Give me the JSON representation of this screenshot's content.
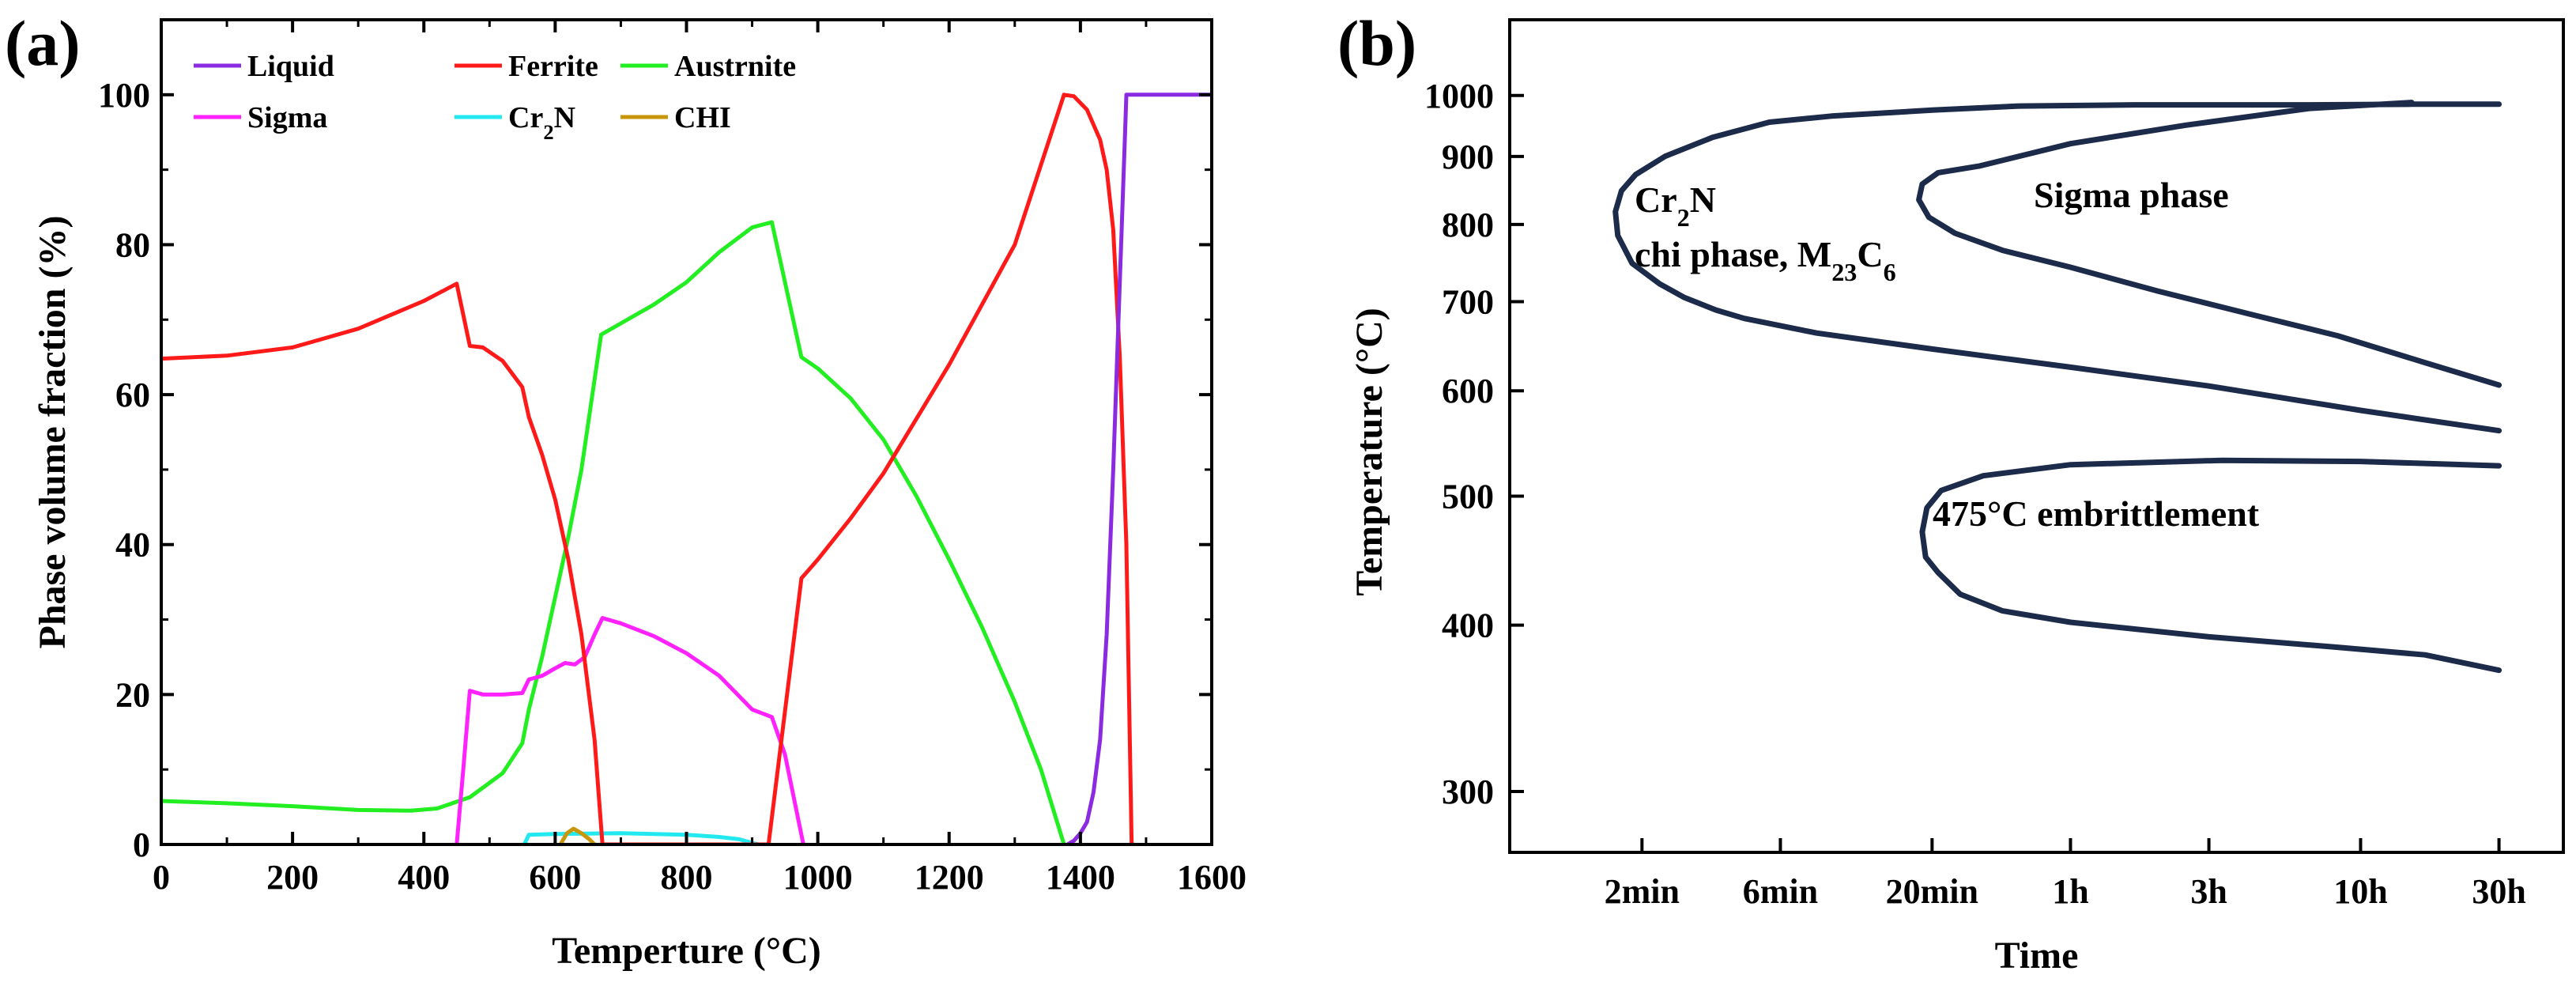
{
  "chart_data": [
    {
      "panel_label": "(a)",
      "type": "line",
      "xlabel": "Temperture (°C)",
      "ylabel": "Phase volume fraction (%)",
      "xlim": [
        0,
        1600
      ],
      "ylim": [
        0,
        110
      ],
      "xticks": [
        0,
        200,
        400,
        600,
        800,
        1000,
        1200,
        1400,
        1600
      ],
      "yticks": [
        0,
        20,
        40,
        60,
        80,
        100
      ],
      "series": [
        {
          "name": "Liquid",
          "color": "#8a2be2",
          "points": [
            [
              1380,
              0
            ],
            [
              1390,
              0.5
            ],
            [
              1400,
              1.5
            ],
            [
              1410,
              3
            ],
            [
              1420,
              7
            ],
            [
              1430,
              14
            ],
            [
              1440,
              28
            ],
            [
              1450,
              50
            ],
            [
              1460,
              75
            ],
            [
              1468,
              95
            ],
            [
              1470,
              100
            ],
            [
              1600,
              100
            ]
          ]
        },
        {
          "name": "Ferrite",
          "color": "#ff1a1a",
          "points": [
            [
              0,
              64.8
            ],
            [
              100,
              65.2
            ],
            [
              200,
              66.3
            ],
            [
              300,
              68.8
            ],
            [
              400,
              72.5
            ],
            [
              450,
              74.8
            ],
            [
              470,
              66.5
            ],
            [
              490,
              66.3
            ],
            [
              520,
              64.5
            ],
            [
              550,
              61
            ],
            [
              560,
              57
            ],
            [
              580,
              52
            ],
            [
              600,
              46
            ],
            [
              620,
              38
            ],
            [
              640,
              28
            ],
            [
              660,
              14
            ],
            [
              672,
              0
            ],
            [
              925,
              0
            ],
            [
              975,
              35.5
            ],
            [
              1000,
              38
            ],
            [
              1050,
              43.5
            ],
            [
              1100,
              49.5
            ],
            [
              1200,
              64
            ],
            [
              1300,
              80
            ],
            [
              1375,
              100
            ],
            [
              1390,
              99.8
            ],
            [
              1410,
              98
            ],
            [
              1430,
              94
            ],
            [
              1440,
              90
            ],
            [
              1450,
              82
            ],
            [
              1460,
              65
            ],
            [
              1470,
              40
            ],
            [
              1478,
              0
            ]
          ]
        },
        {
          "name": "Austrnite",
          "color": "#22ee22",
          "points": [
            [
              0,
              5.8
            ],
            [
              100,
              5.5
            ],
            [
              200,
              5.1
            ],
            [
              300,
              4.6
            ],
            [
              380,
              4.5
            ],
            [
              420,
              4.8
            ],
            [
              470,
              6.3
            ],
            [
              520,
              9.5
            ],
            [
              550,
              13.5
            ],
            [
              560,
              18
            ],
            [
              580,
              25
            ],
            [
              600,
              33
            ],
            [
              620,
              41
            ],
            [
              640,
              50
            ],
            [
              670,
              68
            ],
            [
              700,
              69.5
            ],
            [
              750,
              72
            ],
            [
              800,
              75
            ],
            [
              850,
              79
            ],
            [
              900,
              82.3
            ],
            [
              930,
              83
            ],
            [
              975,
              65
            ],
            [
              1000,
              63.5
            ],
            [
              1050,
              59.5
            ],
            [
              1100,
              54
            ],
            [
              1150,
              46.5
            ],
            [
              1200,
              38
            ],
            [
              1250,
              29
            ],
            [
              1300,
              19
            ],
            [
              1340,
              10
            ],
            [
              1375,
              0
            ]
          ]
        },
        {
          "name": "Sigma",
          "color": "#ff22ff",
          "points": [
            [
              450,
              0
            ],
            [
              460,
              10
            ],
            [
              470,
              20.5
            ],
            [
              490,
              20
            ],
            [
              520,
              20
            ],
            [
              550,
              20.2
            ],
            [
              560,
              22
            ],
            [
              580,
              22.5
            ],
            [
              600,
              23.5
            ],
            [
              615,
              24.2
            ],
            [
              630,
              24
            ],
            [
              645,
              25
            ],
            [
              660,
              28
            ],
            [
              672,
              30.2
            ],
            [
              700,
              29.5
            ],
            [
              750,
              27.8
            ],
            [
              800,
              25.5
            ],
            [
              850,
              22.5
            ],
            [
              900,
              18
            ],
            [
              930,
              17
            ],
            [
              950,
              12
            ],
            [
              978,
              0
            ]
          ]
        },
        {
          "name": "Cr2N",
          "color": "#22e8f0",
          "points": [
            [
              553,
              0
            ],
            [
              560,
              1.3
            ],
            [
              600,
              1.4
            ],
            [
              700,
              1.5
            ],
            [
              800,
              1.3
            ],
            [
              850,
              1.0
            ],
            [
              880,
              0.7
            ],
            [
              905,
              0.1
            ],
            [
              910,
              0
            ]
          ]
        },
        {
          "name": "CHI",
          "color": "#c8960a",
          "points": [
            [
              608,
              0
            ],
            [
              618,
              1.5
            ],
            [
              628,
              2.1
            ],
            [
              640,
              1.5
            ],
            [
              652,
              0.7
            ],
            [
              660,
              0
            ]
          ]
        }
      ],
      "legend": [
        {
          "label": "Liquid",
          "sub": ""
        },
        {
          "label": "Ferrite",
          "sub": ""
        },
        {
          "label": "Austrnite",
          "sub": ""
        },
        {
          "label": "Sigma",
          "sub": ""
        },
        {
          "label": "Cr",
          "sub": "2",
          "tail": "N"
        },
        {
          "label": "CHI",
          "sub": ""
        }
      ]
    },
    {
      "panel_label": "(b)",
      "type": "line",
      "xlabel": "Time",
      "ylabel": "Temperature  (°C)",
      "x_scale": "log",
      "y_scale": "log",
      "x_tick_labels": [
        "2min",
        "6min",
        "20min",
        "1h",
        "3h",
        "10h",
        "30h"
      ],
      "x_tick_minutes": [
        2,
        6,
        20,
        60,
        180,
        600,
        1800
      ],
      "xlim_minutes": [
        0.7,
        3000
      ],
      "ylim": [
        270,
        1140
      ],
      "yticks": [
        300,
        400,
        500,
        600,
        700,
        800,
        900,
        1000
      ],
      "line_color": "#1c2b4a",
      "curves": [
        {
          "name": "Cr2N / chi phase, M23C6 nose",
          "points": [
            [
              1800,
              560
            ],
            [
              600,
              580
            ],
            [
              180,
              605
            ],
            [
              60,
              625
            ],
            [
              20,
              645
            ],
            [
              8,
              663
            ],
            [
              4.5,
              680
            ],
            [
              3.6,
              690
            ],
            [
              2.8,
              705
            ],
            [
              2.3,
              722
            ],
            [
              1.85,
              748
            ],
            [
              1.65,
              785
            ],
            [
              1.62,
              818
            ],
            [
              1.7,
              848
            ],
            [
              1.9,
              872
            ],
            [
              2.4,
              900
            ],
            [
              3.5,
              930
            ],
            [
              5.5,
              955
            ],
            [
              9,
              965
            ],
            [
              20,
              975
            ],
            [
              40,
              982
            ],
            [
              100,
              984
            ],
            [
              400,
              984
            ],
            [
              900,
              985
            ],
            [
              1800,
              985
            ]
          ]
        },
        {
          "name": "Sigma phase nose",
          "points": [
            [
              1800,
              606
            ],
            [
              1000,
              630
            ],
            [
              500,
              660
            ],
            [
              250,
              685
            ],
            [
              120,
              713
            ],
            [
              60,
              743
            ],
            [
              35,
              765
            ],
            [
              24,
              788
            ],
            [
              19.5,
              810
            ],
            [
              18,
              835
            ],
            [
              18.5,
              858
            ],
            [
              21,
              875
            ],
            [
              29,
              885
            ],
            [
              60,
              920
            ],
            [
              150,
              950
            ],
            [
              400,
              978
            ],
            [
              900,
              988
            ]
          ]
        },
        {
          "name": "475°C embrittlement nose",
          "points": [
            [
              1800,
              370
            ],
            [
              1000,
              380
            ],
            [
              500,
              385
            ],
            [
              180,
              392
            ],
            [
              60,
              402
            ],
            [
              35,
              410
            ],
            [
              25,
              422
            ],
            [
              21,
              438
            ],
            [
              19,
              450
            ],
            [
              18.5,
              470
            ],
            [
              19.2,
              490
            ],
            [
              21.5,
              505
            ],
            [
              30,
              518
            ],
            [
              60,
              528
            ],
            [
              200,
              532
            ],
            [
              600,
              531
            ],
            [
              1800,
              527
            ]
          ]
        }
      ],
      "annotations": [
        {
          "text": "Cr",
          "sub": "2",
          "tail": "N"
        },
        {
          "text": "chi phase, M",
          "sub": "23",
          "mid": "C",
          "sub2": "6"
        },
        {
          "text": "Sigma phase"
        },
        {
          "text": "475°C embrittlement"
        }
      ]
    }
  ]
}
